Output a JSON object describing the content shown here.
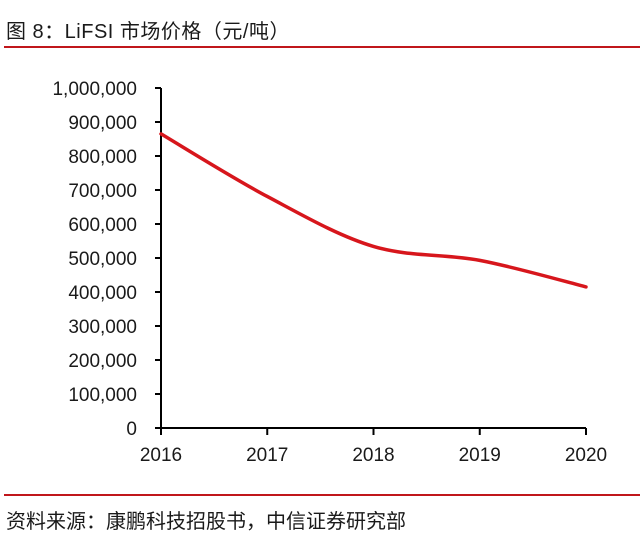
{
  "title": "图 8：LiFSI 市场价格（元/吨）",
  "source": "资料来源：康鹏科技招股书，中信证券研究部",
  "colors": {
    "line": "#d7161c",
    "rule": "#c0161b",
    "axis": "#000000"
  },
  "chart_data": {
    "type": "line",
    "title": "图 8：LiFSI 市场价格（元/吨）",
    "xlabel": "",
    "ylabel": "",
    "categories": [
      "2016",
      "2017",
      "2018",
      "2019",
      "2020"
    ],
    "values": [
      865000,
      681000,
      534000,
      493000,
      415000
    ],
    "ylim": [
      0,
      1000000
    ],
    "yticks": [
      "0",
      "100,000",
      "200,000",
      "300,000",
      "400,000",
      "500,000",
      "600,000",
      "700,000",
      "800,000",
      "900,000",
      "1,000,000"
    ],
    "smooth": true,
    "grid": false,
    "legend": "none"
  }
}
